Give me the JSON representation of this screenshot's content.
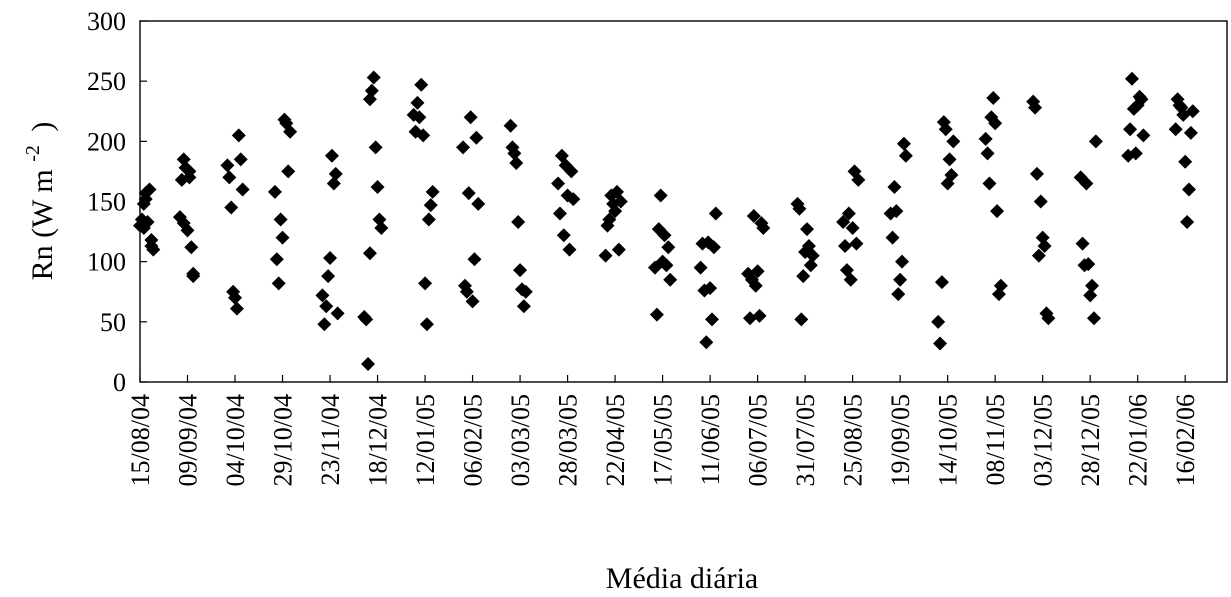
{
  "chart_data": {
    "type": "scatter",
    "title": "",
    "xlabel": "Média diária",
    "ylabel": {
      "main": "Rn (W m",
      "superscript": "-2",
      "close": ")"
    },
    "ylim": [
      0,
      300
    ],
    "yticks": [
      0,
      50,
      100,
      150,
      200,
      250,
      300
    ],
    "xlim": [
      "2004-08-15",
      "2006-03-10"
    ],
    "xtick_labels": [
      "15/08/04",
      "09/09/04",
      "04/10/04",
      "29/10/04",
      "23/11/04",
      "18/12/04",
      "12/01/05",
      "06/02/05",
      "03/03/05",
      "28/03/05",
      "22/04/05",
      "17/05/05",
      "11/06/05",
      "06/07/05",
      "31/07/05",
      "25/08/05",
      "19/09/05",
      "14/10/05",
      "08/11/05",
      "03/12/05",
      "28/12/05",
      "22/01/06",
      "16/02/06"
    ],
    "grid": false,
    "legend": "none",
    "marker": "diamond",
    "marker_color": "#000000",
    "series": [
      {
        "x": [
          "2004-08-15",
          "2004-08-16",
          "2004-08-17",
          "2004-08-17",
          "2004-08-18",
          "2004-08-18",
          "2004-08-19",
          "2004-08-20",
          "2004-08-21",
          "2004-08-21",
          "2004-08-22",
          "2004-09-05",
          "2004-09-06",
          "2004-09-07",
          "2004-09-07",
          "2004-09-08",
          "2004-09-09",
          "2004-09-10",
          "2004-09-10",
          "2004-09-11",
          "2004-09-12",
          "2004-09-12",
          "2004-09-30",
          "2004-10-01",
          "2004-10-02",
          "2004-10-03",
          "2004-10-04",
          "2004-10-05",
          "2004-10-06",
          "2004-10-07",
          "2004-10-08",
          "2004-10-25",
          "2004-10-26",
          "2004-10-27",
          "2004-10-28",
          "2004-10-29",
          "2004-10-30",
          "2004-10-31",
          "2004-11-01",
          "2004-11-02",
          "2004-11-19",
          "2004-11-20",
          "2004-11-21",
          "2004-11-22",
          "2004-11-23",
          "2004-11-24",
          "2004-11-25",
          "2004-11-26",
          "2004-11-27",
          "2004-12-11",
          "2004-12-12",
          "2004-12-13",
          "2004-12-14",
          "2004-12-14",
          "2004-12-15",
          "2004-12-16",
          "2004-12-17",
          "2004-12-18",
          "2004-12-19",
          "2004-12-20",
          "2005-01-06",
          "2005-01-07",
          "2005-01-08",
          "2005-01-09",
          "2005-01-10",
          "2005-01-11",
          "2005-01-12",
          "2005-01-13",
          "2005-01-14",
          "2005-01-15",
          "2005-01-16",
          "2005-02-01",
          "2005-02-02",
          "2005-02-03",
          "2005-02-04",
          "2005-02-05",
          "2005-02-06",
          "2005-02-07",
          "2005-02-08",
          "2005-02-09",
          "2005-02-26",
          "2005-02-27",
          "2005-02-28",
          "2005-03-01",
          "2005-03-02",
          "2005-03-03",
          "2005-03-04",
          "2005-03-05",
          "2005-03-06",
          "2005-03-23",
          "2005-03-24",
          "2005-03-25",
          "2005-03-26",
          "2005-03-27",
          "2005-03-28",
          "2005-03-29",
          "2005-03-30",
          "2005-03-31",
          "2005-04-17",
          "2005-04-18",
          "2005-04-19",
          "2005-04-20",
          "2005-04-21",
          "2005-04-22",
          "2005-04-23",
          "2005-04-24",
          "2005-04-25",
          "2005-05-13",
          "2005-05-14",
          "2005-05-15",
          "2005-05-16",
          "2005-05-17",
          "2005-05-18",
          "2005-05-19",
          "2005-05-20",
          "2005-05-21",
          "2005-06-06",
          "2005-06-07",
          "2005-06-08",
          "2005-06-09",
          "2005-06-10",
          "2005-06-11",
          "2005-06-12",
          "2005-06-13",
          "2005-06-14",
          "2005-07-01",
          "2005-07-02",
          "2005-07-03",
          "2005-07-04",
          "2005-07-05",
          "2005-07-06",
          "2005-07-07",
          "2005-07-08",
          "2005-07-09",
          "2005-07-27",
          "2005-07-28",
          "2005-07-29",
          "2005-07-30",
          "2005-07-31",
          "2005-08-01",
          "2005-08-02",
          "2005-08-03",
          "2005-08-04",
          "2005-08-20",
          "2005-08-21",
          "2005-08-22",
          "2005-08-23",
          "2005-08-24",
          "2005-08-25",
          "2005-08-26",
          "2005-08-27",
          "2005-08-28",
          "2005-09-14",
          "2005-09-15",
          "2005-09-16",
          "2005-09-17",
          "2005-09-18",
          "2005-09-19",
          "2005-09-20",
          "2005-09-21",
          "2005-09-22",
          "2005-10-09",
          "2005-10-10",
          "2005-10-11",
          "2005-10-12",
          "2005-10-13",
          "2005-10-14",
          "2005-10-15",
          "2005-10-16",
          "2005-10-17",
          "2005-11-03",
          "2005-11-04",
          "2005-11-05",
          "2005-11-06",
          "2005-11-07",
          "2005-11-08",
          "2005-11-09",
          "2005-11-10",
          "2005-11-11",
          "2005-11-28",
          "2005-11-29",
          "2005-11-30",
          "2005-12-01",
          "2005-12-02",
          "2005-12-03",
          "2005-12-04",
          "2005-12-05",
          "2005-12-06",
          "2005-12-23",
          "2005-12-24",
          "2005-12-25",
          "2005-12-26",
          "2005-12-27",
          "2005-12-28",
          "2005-12-29",
          "2005-12-30",
          "2005-12-31",
          "2006-01-17",
          "2006-01-18",
          "2006-01-19",
          "2006-01-20",
          "2006-01-21",
          "2006-01-22",
          "2006-01-23",
          "2006-01-24",
          "2006-01-25",
          "2006-02-11",
          "2006-02-12",
          "2006-02-13",
          "2006-02-14",
          "2006-02-15",
          "2006-02-16",
          "2006-02-17",
          "2006-02-18",
          "2006-02-19",
          "2006-02-20"
        ],
        "y": [
          130,
          135,
          128,
          148,
          152,
          157,
          133,
          160,
          118,
          113,
          110,
          137,
          168,
          185,
          132,
          178,
          126,
          175,
          170,
          112,
          90,
          88,
          180,
          170,
          145,
          75,
          70,
          61,
          205,
          185,
          160,
          158,
          102,
          82,
          135,
          120,
          218,
          215,
          175,
          208,
          72,
          48,
          63,
          88,
          103,
          188,
          165,
          173,
          57,
          54,
          52,
          15,
          107,
          235,
          242,
          253,
          195,
          162,
          135,
          128,
          222,
          208,
          232,
          220,
          247,
          205,
          82,
          48,
          135,
          147,
          158,
          195,
          80,
          75,
          157,
          220,
          67,
          102,
          203,
          148,
          213,
          195,
          190,
          182,
          133,
          93,
          77,
          63,
          75,
          165,
          140,
          188,
          122,
          180,
          155,
          110,
          175,
          152,
          105,
          130,
          135,
          155,
          148,
          142,
          158,
          110,
          150,
          95,
          56,
          127,
          155,
          100,
          122,
          97,
          112,
          85,
          95,
          115,
          76,
          33,
          116,
          78,
          52,
          112,
          140,
          90,
          53,
          85,
          138,
          80,
          92,
          55,
          132,
          128,
          148,
          144,
          52,
          88,
          108,
          127,
          113,
          97,
          105,
          133,
          113,
          93,
          140,
          85,
          128,
          175,
          115,
          168,
          140,
          120,
          162,
          142,
          73,
          85,
          100,
          198,
          188,
          50,
          32,
          83,
          216,
          210,
          165,
          185,
          172,
          200,
          202,
          190,
          165,
          220,
          236,
          215,
          142,
          73,
          80,
          233,
          228,
          173,
          105,
          150,
          120,
          113,
          57,
          53,
          170,
          115,
          97,
          165,
          98,
          72,
          80,
          53,
          200,
          188,
          210,
          252,
          227,
          190,
          230,
          237,
          235,
          205,
          210,
          235,
          230,
          228,
          222,
          183,
          133,
          160,
          207,
          225
        ]
      }
    ]
  }
}
